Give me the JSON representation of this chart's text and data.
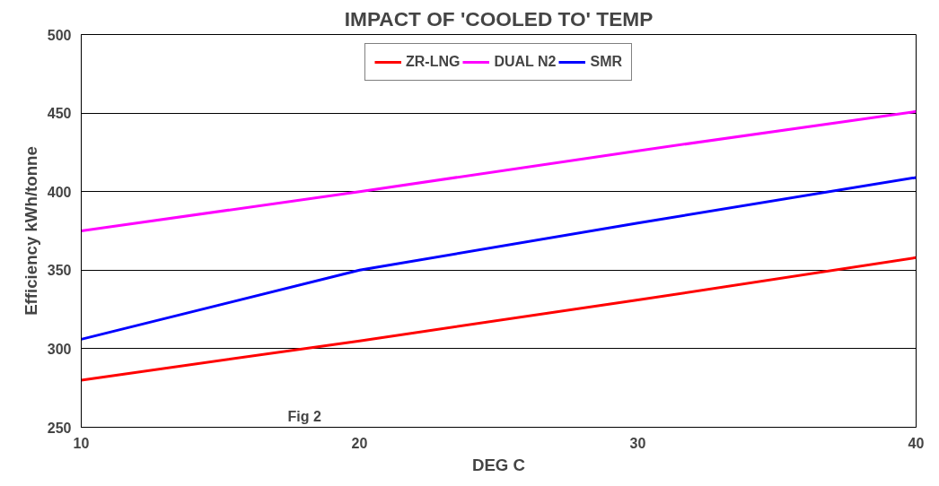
{
  "chart_data": {
    "type": "line",
    "title": "IMPACT OF 'COOLED TO' TEMP",
    "xlabel": "DEG C",
    "ylabel": "Efficiency kWh/tonne",
    "x": [
      10,
      20,
      30,
      40
    ],
    "series": [
      {
        "name": "ZR-LNG",
        "color": "#ff0000",
        "values": [
          280,
          305,
          331,
          358
        ]
      },
      {
        "name": "DUAL N2",
        "color": "#ff00ff",
        "values": [
          375,
          400,
          426,
          451
        ]
      },
      {
        "name": "SMR",
        "color": "#0000ff",
        "values": [
          306,
          350,
          380,
          409
        ]
      }
    ],
    "xlim": [
      10,
      40
    ],
    "xticks": [
      10,
      20,
      30,
      40
    ],
    "ylim": [
      250,
      500
    ],
    "yticks": [
      250,
      300,
      350,
      400,
      450,
      500
    ],
    "grid": "y",
    "legend": "top",
    "marker": "none",
    "line_style": "solid",
    "annotations": [
      "Fig 2"
    ]
  }
}
